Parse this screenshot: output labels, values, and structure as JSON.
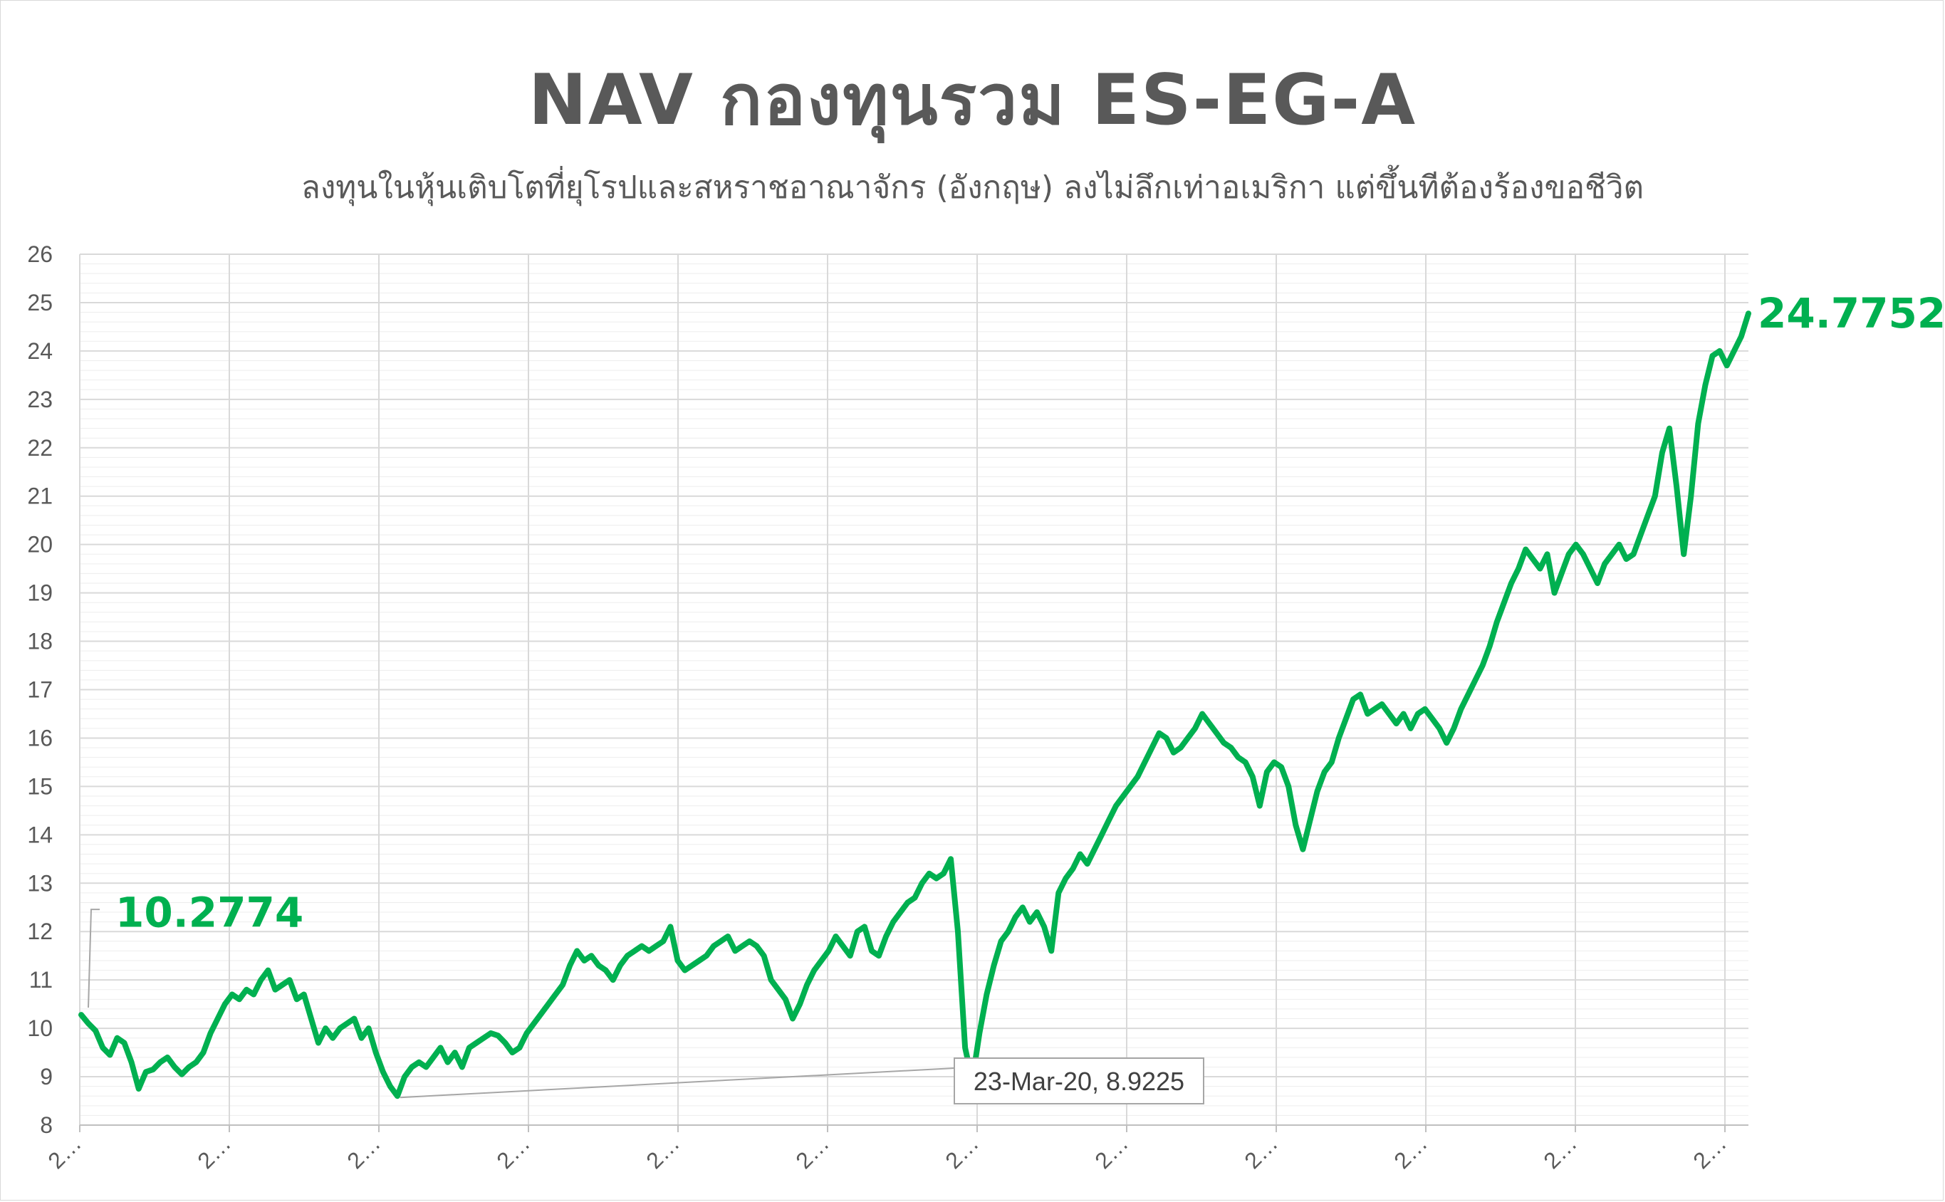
{
  "title": "NAV กองทุนรวม ES-EG-A",
  "subtitle": "ลงทุนในหุ้นเติบโตที่ยุโรปและสหราชอาณาจักร (อังกฤษ) ลงไม่ลึกเท่าอเมริกา แต่ขึ้นทีต้องร้องขอชีวิต",
  "chart_data": {
    "type": "line",
    "title": "NAV กองทุนรวม ES-EG-A",
    "subtitle": "ลงทุนในหุ้นเติบโตที่ยุโรปและสหราชอาณาจักร (อังกฤษ) ลงไม่ลึกเท่าอเมริกา แต่ขึ้นทีต้องร้องขอชีวิต",
    "ylim": [
      8,
      26
    ],
    "yticks": [
      "8",
      "9",
      "10",
      "11",
      "12",
      "13",
      "14",
      "15",
      "16",
      "17",
      "18",
      "19",
      "20",
      "21",
      "22",
      "23",
      "24",
      "25",
      "26"
    ],
    "xticks": [
      "2…",
      "2…",
      "2…",
      "2…",
      "2…",
      "2…",
      "2…",
      "2…",
      "2…",
      "2…",
      "2…",
      "2…"
    ],
    "grid": true,
    "line_color": "#00b050",
    "series": [
      {
        "values": [
          10.28,
          10.1,
          9.95,
          9.6,
          9.45,
          9.8,
          9.7,
          9.3,
          8.75,
          9.1,
          9.15,
          9.3,
          9.4,
          9.2,
          9.05,
          9.2,
          9.3,
          9.5,
          9.9,
          10.2,
          10.5,
          10.7,
          10.6,
          10.8,
          10.7,
          11.0,
          11.2,
          10.8,
          10.9,
          11.0,
          10.6,
          10.7,
          10.2,
          9.7,
          10.0,
          9.8,
          10.0,
          10.1,
          10.2,
          9.8,
          10.0,
          9.5,
          9.1,
          8.8,
          8.6,
          9.0,
          9.2,
          9.3,
          9.2,
          9.4,
          9.6,
          9.3,
          9.5,
          9.2,
          9.6,
          9.7,
          9.8,
          9.9,
          9.85,
          9.7,
          9.5,
          9.6,
          9.9,
          10.1,
          10.3,
          10.5,
          10.7,
          10.9,
          11.3,
          11.6,
          11.4,
          11.5,
          11.3,
          11.2,
          11.0,
          11.3,
          11.5,
          11.6,
          11.7,
          11.6,
          11.7,
          11.8,
          12.1,
          11.4,
          11.2,
          11.3,
          11.4,
          11.5,
          11.7,
          11.8,
          11.9,
          11.6,
          11.7,
          11.8,
          11.7,
          11.5,
          11.0,
          10.8,
          10.6,
          10.2,
          10.5,
          10.9,
          11.2,
          11.4,
          11.6,
          11.9,
          11.7,
          11.5,
          12.0,
          12.1,
          11.6,
          11.5,
          11.9,
          12.2,
          12.4,
          12.6,
          12.7,
          13.0,
          13.2,
          13.1,
          13.2,
          13.5,
          12.0,
          9.6,
          8.92,
          9.9,
          10.7,
          11.3,
          11.8,
          12.0,
          12.3,
          12.5,
          12.2,
          12.4,
          12.1,
          11.6,
          12.8,
          13.1,
          13.3,
          13.6,
          13.4,
          13.7,
          14.0,
          14.3,
          14.6,
          14.8,
          15.0,
          15.2,
          15.5,
          15.8,
          16.1,
          16.0,
          15.7,
          15.8,
          16.0,
          16.2,
          16.5,
          16.3,
          16.1,
          15.9,
          15.8,
          15.6,
          15.5,
          15.2,
          14.6,
          15.3,
          15.5,
          15.4,
          15.0,
          14.2,
          13.7,
          14.3,
          14.9,
          15.3,
          15.5,
          16.0,
          16.4,
          16.8,
          16.9,
          16.5,
          16.6,
          16.7,
          16.5,
          16.3,
          16.5,
          16.2,
          16.5,
          16.6,
          16.4,
          16.2,
          15.9,
          16.2,
          16.6,
          16.9,
          17.2,
          17.5,
          17.9,
          18.4,
          18.8,
          19.2,
          19.5,
          19.9,
          19.7,
          19.5,
          19.8,
          19.0,
          19.4,
          19.8,
          20.0,
          19.8,
          19.5,
          19.2,
          19.6,
          19.8,
          20.0,
          19.7,
          19.8,
          20.2,
          20.6,
          21.0,
          21.9,
          22.4,
          21.2,
          19.8,
          21.0,
          22.5,
          23.3,
          23.9,
          24.0,
          23.7,
          24.0,
          24.3,
          24.7752
        ]
      }
    ],
    "annotations": [
      {
        "label": "10.2774",
        "value": 10.2774
      },
      {
        "label": "23-Mar-20, 8.9225",
        "date": "23-Mar-20",
        "value": 8.9225
      },
      {
        "label": "24.7752",
        "value": 24.7752
      }
    ]
  }
}
